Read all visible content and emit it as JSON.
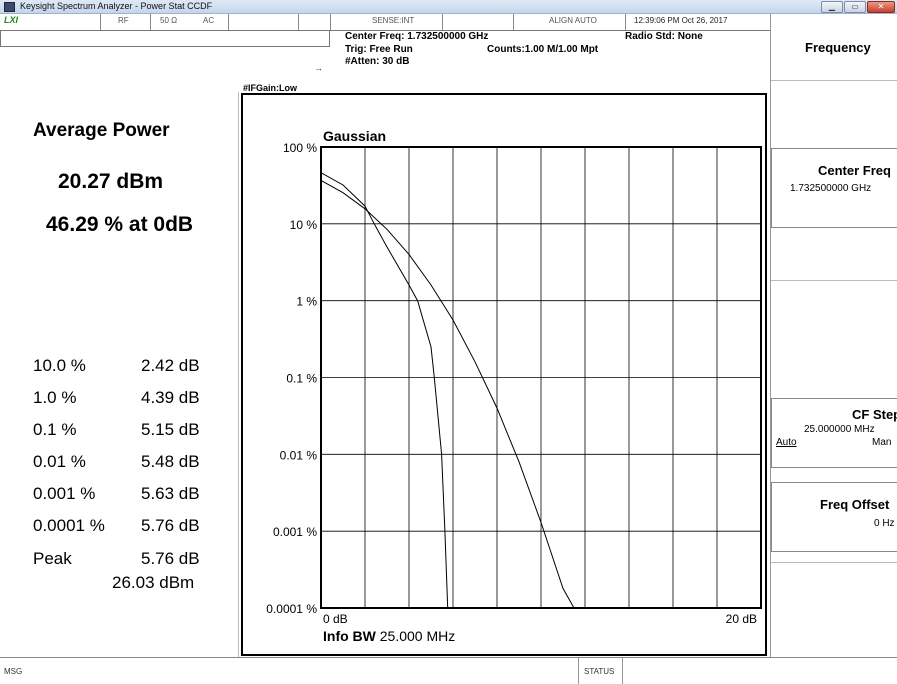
{
  "window": {
    "title": "Keysight Spectrum Analyzer - Power Stat CCDF",
    "minimize_icon": "minimize-icon",
    "maximize_icon": "maximize-icon",
    "close_icon": "close-icon"
  },
  "status_bar": {
    "logo": "LXI",
    "rf": "RF",
    "impedance": "50 Ω",
    "coupling": "AC",
    "sense": "SENSE:INT",
    "align": "ALIGN AUTO",
    "timestamp": "12:39:06 PM Oct 26, 2017"
  },
  "header": {
    "center_freq": "Center Freq: 1.732500000 GHz",
    "trig": "Trig: Free Run",
    "atten": "#Atten: 30 dB",
    "ifgain": "#IFGain:Low",
    "radio_std": "Radio Std: None",
    "counts": "Counts:1.00 M/1.00 Mpt"
  },
  "left_panel": {
    "title": "Average Power",
    "avg_power": "20.27 dBm",
    "avg_pct": "46.29 % at 0dB",
    "stats": [
      {
        "label": "10.0 %",
        "value": "2.42 dB"
      },
      {
        "label": "1.0 %",
        "value": "4.39 dB"
      },
      {
        "label": "0.1 %",
        "value": "5.15 dB"
      },
      {
        "label": "0.01 %",
        "value": "5.48 dB"
      },
      {
        "label": "0.001 %",
        "value": "5.63 dB"
      },
      {
        "label": "0.0001 %",
        "value": "5.76 dB"
      },
      {
        "label": "Peak",
        "value": "5.76 dB"
      }
    ],
    "peak_dbm": "26.03 dBm"
  },
  "chart_data": {
    "type": "line",
    "title": "Gaussian",
    "y_scale": "log",
    "y_ticks": [
      "100 %",
      "10 %",
      "1 %",
      "0.1 %",
      "0.01 %",
      "0.001 %",
      "0.0001 %"
    ],
    "y_tick_values": [
      100,
      10,
      1,
      0.1,
      0.01,
      0.001,
      0.0001
    ],
    "x_ticks": [
      "0 dB",
      "20 dB"
    ],
    "xlim": [
      0,
      20
    ],
    "ylim": [
      0.0001,
      100
    ],
    "info_bw_label": "Info BW",
    "info_bw_value": "25.000 MHz",
    "grid": true,
    "series": [
      {
        "x": [
          0,
          1,
          2,
          3,
          4,
          5,
          6,
          7,
          8,
          9,
          10,
          11,
          11.5
        ],
        "y": [
          36.8,
          25.4,
          15.7,
          8.5,
          4.0,
          1.6,
          0.56,
          0.16,
          0.04,
          0.008,
          0.0013,
          0.00018,
          0.0001
        ]
      },
      {
        "x": [
          0,
          1,
          2,
          2.42,
          3,
          4,
          4.39,
          5,
          5.15,
          5.48,
          5.63,
          5.76
        ],
        "y": [
          46.29,
          32,
          17,
          10,
          5,
          1.6,
          1.0,
          0.25,
          0.1,
          0.01,
          0.001,
          0.0001
        ]
      }
    ]
  },
  "right_panel": {
    "menu_title": "Frequency",
    "center_freq_label": "Center Freq",
    "center_freq_value": "1.732500000 GHz",
    "cf_step_label": "CF Step",
    "cf_step_value": "25.000000 MHz",
    "cf_step_auto": "Auto",
    "cf_step_man": "Man",
    "freq_offset_label": "Freq Offset",
    "freq_offset_value": "0 Hz"
  },
  "bottom_bar": {
    "msg": "MSG",
    "status": "STATUS"
  }
}
